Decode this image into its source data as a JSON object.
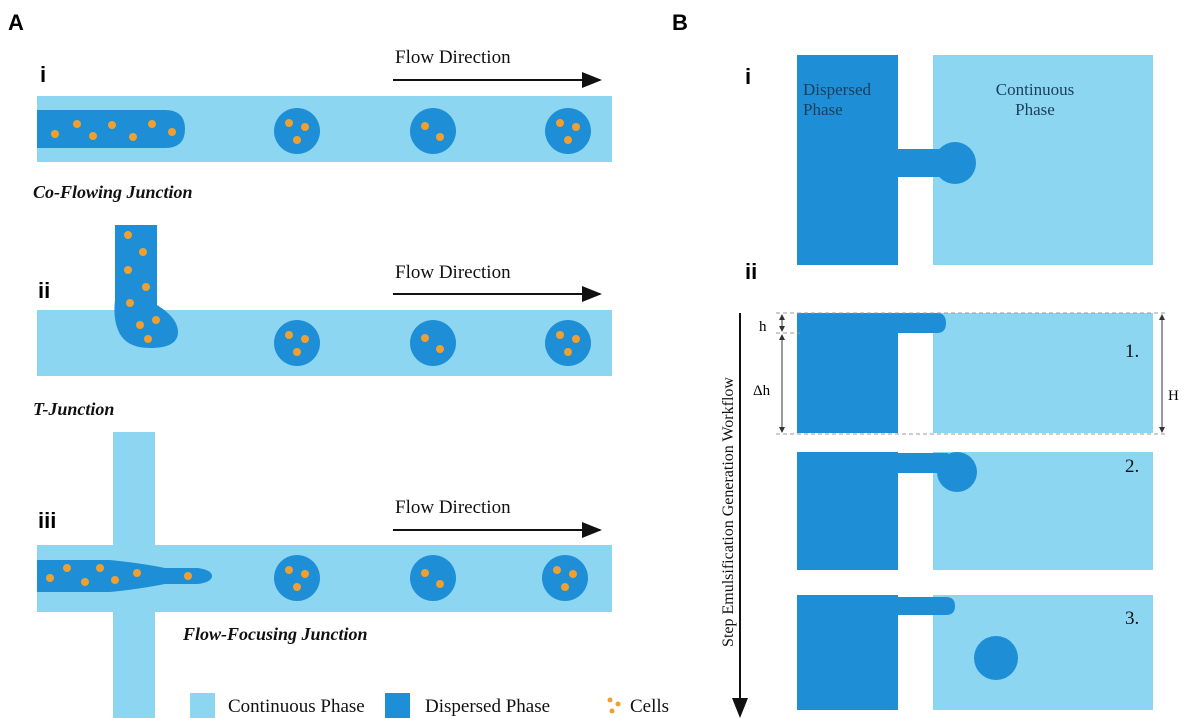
{
  "panel_a": {
    "label": "A",
    "rows": [
      {
        "numeral": "i",
        "flow_label": "Flow Direction",
        "junction": "Co-Flowing Junction"
      },
      {
        "numeral": "ii",
        "flow_label": "Flow Direction",
        "junction": "T-Junction"
      },
      {
        "numeral": "iii",
        "flow_label": "Flow Direction",
        "junction": "Flow-Focusing Junction"
      }
    ]
  },
  "legend": [
    "Continuous Phase",
    "Dispersed Phase",
    "Cells"
  ],
  "panel_b": {
    "label": "B",
    "section_i": {
      "numeral": "i",
      "dispersed": "Dispersed Phase",
      "continuous": "Continuous Phase"
    },
    "section_ii": {
      "numeral": "ii",
      "workflow": "Step Emulsification Generation Workflow",
      "dimensions": {
        "h": "h",
        "delta_h": "Δh",
        "H": "H"
      },
      "steps": [
        "1.",
        "2.",
        "3."
      ]
    }
  }
}
